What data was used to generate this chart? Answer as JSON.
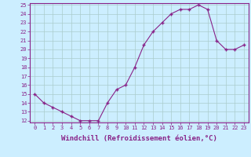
{
  "x": [
    0,
    1,
    2,
    3,
    4,
    5,
    6,
    7,
    8,
    9,
    10,
    11,
    12,
    13,
    14,
    15,
    16,
    17,
    18,
    19,
    20,
    21,
    22,
    23
  ],
  "y": [
    15,
    14,
    13.5,
    13,
    12.5,
    12,
    12,
    12,
    14,
    15.5,
    16,
    18,
    20.5,
    22,
    23,
    24,
    24.5,
    24.5,
    25,
    24.5,
    21,
    20,
    20,
    20.5
  ],
  "line_color": "#882288",
  "marker": "+",
  "bg_color": "#cceeff",
  "grid_color": "#aacccc",
  "xlabel": "Windchill (Refroidissement éolien,°C)",
  "ylim": [
    12,
    25
  ],
  "xlim": [
    -0.5,
    23.5
  ],
  "yticks": [
    12,
    13,
    14,
    15,
    16,
    17,
    18,
    19,
    20,
    21,
    22,
    23,
    24,
    25
  ],
  "xticks": [
    0,
    1,
    2,
    3,
    4,
    5,
    6,
    7,
    8,
    9,
    10,
    11,
    12,
    13,
    14,
    15,
    16,
    17,
    18,
    19,
    20,
    21,
    22,
    23
  ],
  "tick_label_fontsize": 5.0,
  "xlabel_fontsize": 6.5,
  "axis_color": "#882288"
}
